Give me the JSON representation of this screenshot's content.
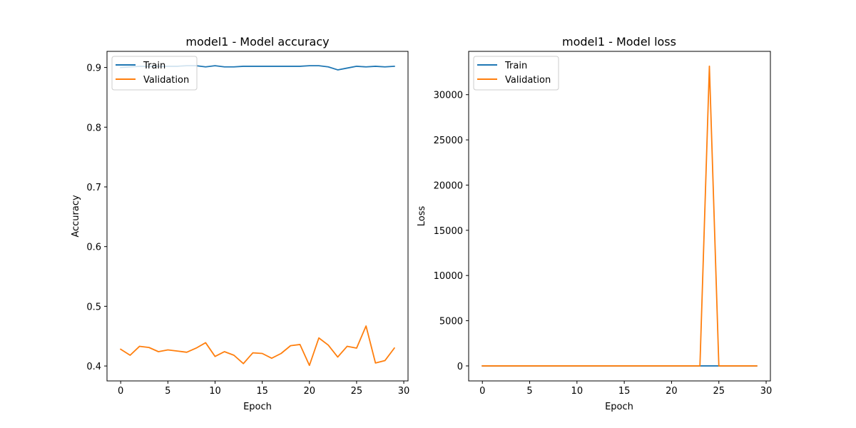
{
  "figure": {
    "background": "#ffffff"
  },
  "colors": {
    "train": "#1f77b4",
    "validation": "#ff7f0e",
    "axes": "#000000"
  },
  "chart_data": [
    {
      "type": "line",
      "title": "model1 - Model accuracy",
      "xlabel": "Epoch",
      "ylabel": "Accuracy",
      "xlim": [
        -1.45,
        30.45
      ],
      "ylim": [
        0.375,
        0.927
      ],
      "xticks": [
        0,
        5,
        10,
        15,
        20,
        25,
        30
      ],
      "xtick_labels": [
        "0",
        "5",
        "10",
        "15",
        "20",
        "25",
        "30"
      ],
      "yticks": [
        0.4,
        0.5,
        0.6,
        0.7,
        0.8,
        0.9
      ],
      "ytick_labels": [
        "0.4",
        "0.5",
        "0.6",
        "0.7",
        "0.8",
        "0.9"
      ],
      "grid": false,
      "legend": {
        "position": "top-left",
        "entries": [
          "Train",
          "Validation"
        ]
      },
      "x": [
        0,
        1,
        2,
        3,
        4,
        5,
        6,
        7,
        8,
        9,
        10,
        11,
        12,
        13,
        14,
        15,
        16,
        17,
        18,
        19,
        20,
        21,
        22,
        23,
        24,
        25,
        26,
        27,
        28,
        29
      ],
      "series": [
        {
          "name": "Train",
          "color": "#1f77b4",
          "values": [
            0.9,
            0.901,
            0.902,
            0.902,
            0.902,
            0.902,
            0.902,
            0.903,
            0.903,
            0.901,
            0.903,
            0.901,
            0.901,
            0.902,
            0.902,
            0.902,
            0.902,
            0.902,
            0.902,
            0.902,
            0.903,
            0.903,
            0.901,
            0.896,
            0.899,
            0.902,
            0.901,
            0.902,
            0.901,
            0.902
          ]
        },
        {
          "name": "Validation",
          "color": "#ff7f0e",
          "values": [
            0.428,
            0.418,
            0.433,
            0.431,
            0.424,
            0.427,
            0.425,
            0.423,
            0.43,
            0.439,
            0.416,
            0.424,
            0.418,
            0.404,
            0.422,
            0.421,
            0.413,
            0.421,
            0.434,
            0.436,
            0.401,
            0.447,
            0.435,
            0.415,
            0.433,
            0.43,
            0.467,
            0.405,
            0.409,
            0.43
          ]
        }
      ]
    },
    {
      "type": "line",
      "title": "model1 - Model loss",
      "xlabel": "Epoch",
      "ylabel": "Loss",
      "xlim": [
        -1.45,
        30.45
      ],
      "ylim": [
        -1660,
        34790
      ],
      "xticks": [
        0,
        5,
        10,
        15,
        20,
        25,
        30
      ],
      "xtick_labels": [
        "0",
        "5",
        "10",
        "15",
        "20",
        "25",
        "30"
      ],
      "yticks": [
        0,
        5000,
        10000,
        15000,
        20000,
        25000,
        30000
      ],
      "ytick_labels": [
        "0",
        "5000",
        "10000",
        "15000",
        "20000",
        "25000",
        "30000"
      ],
      "grid": false,
      "legend": {
        "position": "top-left",
        "entries": [
          "Train",
          "Validation"
        ]
      },
      "x": [
        0,
        1,
        2,
        3,
        4,
        5,
        6,
        7,
        8,
        9,
        10,
        11,
        12,
        13,
        14,
        15,
        16,
        17,
        18,
        19,
        20,
        21,
        22,
        23,
        24,
        25,
        26,
        27,
        28,
        29
      ],
      "series": [
        {
          "name": "Train",
          "color": "#1f77b4",
          "values": [
            0.3,
            0.3,
            0.3,
            0.3,
            0.3,
            0.3,
            0.3,
            0.3,
            0.3,
            0.3,
            0.3,
            0.3,
            0.3,
            0.3,
            0.3,
            0.3,
            0.3,
            0.3,
            0.3,
            0.3,
            0.3,
            0.3,
            0.3,
            0.3,
            0.3,
            0.3,
            0.3,
            0.3,
            0.3,
            0.3
          ]
        },
        {
          "name": "Validation",
          "color": "#ff7f0e",
          "values": [
            1.2,
            1.3,
            1.2,
            1.2,
            1.3,
            1.2,
            1.3,
            1.3,
            1.2,
            1.2,
            1.3,
            1.3,
            1.3,
            1.4,
            1.3,
            1.3,
            1.4,
            1.3,
            1.2,
            1.2,
            1.4,
            1.2,
            1.2,
            1.3,
            33150,
            1.2,
            1.1,
            1.4,
            1.4,
            1.2
          ]
        }
      ]
    }
  ]
}
